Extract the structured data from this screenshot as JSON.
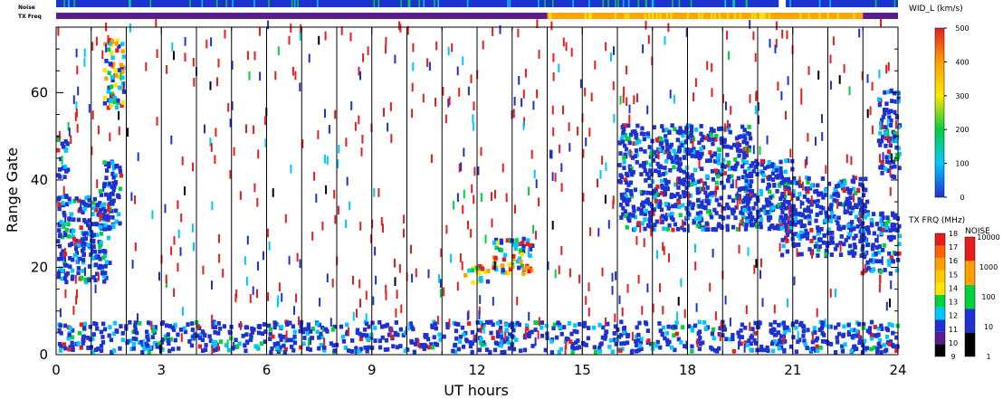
{
  "chart_data": {
    "type": "heatmap",
    "xlabel": "UT hours",
    "ylabel": "Range Gate",
    "xlim": [
      0,
      24
    ],
    "ylim": [
      0,
      75
    ],
    "x_ticks": [
      "0",
      "3",
      "6",
      "9",
      "12",
      "15",
      "18",
      "21",
      "24"
    ],
    "y_ticks": [
      "0",
      "20",
      "40",
      "60"
    ],
    "hour_marks": [
      1,
      2,
      3,
      4,
      5,
      6,
      7,
      8,
      9,
      10,
      11,
      12,
      13,
      14,
      15,
      16,
      17,
      18,
      19,
      20,
      21,
      22,
      23
    ],
    "regions": [
      {
        "x": [
          0.0,
          1.5
        ],
        "y": [
          16,
          36
        ],
        "level": "low"
      },
      {
        "x": [
          1.2,
          1.8
        ],
        "y": [
          28,
          44
        ],
        "level": "low"
      },
      {
        "x": [
          1.3,
          1.9
        ],
        "y": [
          56,
          72
        ],
        "level": "mixed"
      },
      {
        "x": [
          0.0,
          0.3
        ],
        "y": [
          40,
          50
        ],
        "level": "low"
      },
      {
        "x": [
          0.0,
          24.0
        ],
        "y": [
          0,
          7
        ],
        "level": "low"
      },
      {
        "x": [
          11.6,
          12.3
        ],
        "y": [
          16,
          20
        ],
        "level": "mixed"
      },
      {
        "x": [
          12.4,
          13.6
        ],
        "y": [
          18,
          26
        ],
        "level": "mixed"
      },
      {
        "x": [
          16.0,
          19.8
        ],
        "y": [
          28,
          52
        ],
        "level": "low"
      },
      {
        "x": [
          19.6,
          21.0
        ],
        "y": [
          28,
          44
        ],
        "level": "low"
      },
      {
        "x": [
          20.6,
          23.1
        ],
        "y": [
          22,
          40
        ],
        "level": "low"
      },
      {
        "x": [
          22.9,
          24.0
        ],
        "y": [
          18,
          32
        ],
        "level": "low"
      },
      {
        "x": [
          23.4,
          24.0
        ],
        "y": [
          40,
          60
        ],
        "level": "low"
      }
    ],
    "noise_strip": {
      "label": "Noise",
      "gap_x": [
        20.6,
        20.8
      ]
    },
    "txfreq_strip": {
      "label": "TX Freq",
      "segments": [
        {
          "x": [
            0.0,
            14.0
          ],
          "color": "#5a1e8c"
        },
        {
          "x": [
            14.0,
            23.0
          ],
          "color": "#ffa500"
        },
        {
          "x": [
            23.0,
            24.0
          ],
          "color": "#5a1e8c"
        }
      ]
    },
    "colorbars": [
      {
        "title": "WID_L (km/s)",
        "type": "continuous",
        "ticks": [
          "0",
          "100",
          "200",
          "300",
          "400",
          "500"
        ],
        "range": [
          0,
          500
        ],
        "colors": [
          "#1e32d2",
          "#00c8ff",
          "#00d23c",
          "#ffe600",
          "#ffa000",
          "#e61e1e"
        ]
      },
      {
        "title": "TX FRQ (MHz)",
        "type": "discrete",
        "ticks": [
          "9",
          "10",
          "11",
          "12",
          "13",
          "14",
          "15",
          "16",
          "17",
          "18"
        ],
        "colors": [
          "#000000",
          "#5a1e8c",
          "#1e32d2",
          "#00c8ff",
          "#00d23c",
          "#ffe600",
          "#ffc800",
          "#ffa000",
          "#ff6400",
          "#e61e1e"
        ]
      },
      {
        "title": "NOISE",
        "type": "discrete",
        "ticks": [
          "1",
          "10",
          "100",
          "1000",
          "10000"
        ],
        "colors": [
          "#000000",
          "#1e32d2",
          "#00d23c",
          "#ffa000",
          "#e61e1e"
        ]
      }
    ]
  }
}
